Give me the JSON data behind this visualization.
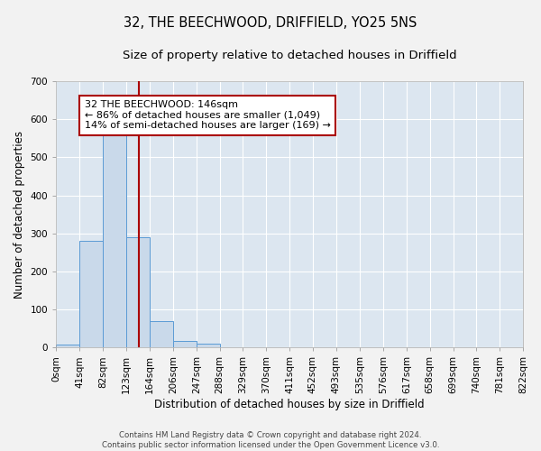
{
  "title": "32, THE BEECHWOOD, DRIFFIELD, YO25 5NS",
  "subtitle": "Size of property relative to detached houses in Driffield",
  "xlabel": "Distribution of detached houses by size in Driffield",
  "ylabel": "Number of detached properties",
  "bar_values": [
    8,
    280,
    565,
    290,
    70,
    18,
    9,
    0,
    0,
    0,
    0,
    0,
    0,
    0,
    0,
    0,
    0,
    0,
    0,
    0
  ],
  "bin_edges": [
    0,
    41,
    82,
    123,
    164,
    206,
    247,
    288,
    329,
    370,
    411,
    452,
    493,
    535,
    576,
    617,
    658,
    699,
    740,
    781,
    822
  ],
  "x_labels": [
    "0sqm",
    "41sqm",
    "82sqm",
    "123sqm",
    "164sqm",
    "206sqm",
    "247sqm",
    "288sqm",
    "329sqm",
    "370sqm",
    "411sqm",
    "452sqm",
    "493sqm",
    "535sqm",
    "576sqm",
    "617sqm",
    "658sqm",
    "699sqm",
    "740sqm",
    "781sqm",
    "822sqm"
  ],
  "ylim": [
    0,
    700
  ],
  "yticks": [
    0,
    100,
    200,
    300,
    400,
    500,
    600,
    700
  ],
  "bar_color": "#c9d9ea",
  "bar_edge_color": "#5b9bd5",
  "vline_x": 146,
  "vline_color": "#aa0000",
  "annotation_box_text": "32 THE BEECHWOOD: 146sqm\n← 86% of detached houses are smaller (1,049)\n14% of semi-detached houses are larger (169) →",
  "bg_color": "#dce6f0",
  "fig_bg_color": "#f2f2f2",
  "grid_color": "#ffffff",
  "footer_text": "Contains HM Land Registry data © Crown copyright and database right 2024.\nContains public sector information licensed under the Open Government Licence v3.0.",
  "title_fontsize": 10.5,
  "subtitle_fontsize": 9.5,
  "axis_label_fontsize": 8.5,
  "tick_fontsize": 7.5,
  "annotation_fontsize": 8
}
